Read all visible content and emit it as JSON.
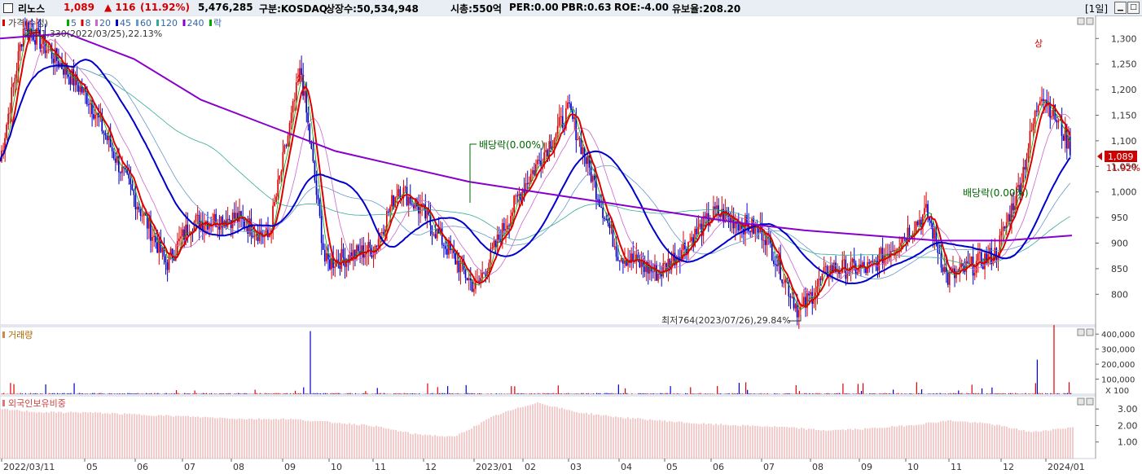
{
  "header": {
    "name": "리노스",
    "price": "1,089",
    "change": "▲ 116",
    "change_pct": "(11.92%)",
    "volume": "5,476,285",
    "market": "구분:KOSDAQ",
    "shares": "상장수:50,534,948",
    "mcap": "시총:550억",
    "per": "PER:0.00",
    "pbr": "PBR:0.63",
    "roe": "ROE:-4.00",
    "float": "유보율:208.20",
    "period": "[1일]",
    "colors": {
      "up": "#d40000",
      "down": "#0000cc"
    }
  },
  "price_panel": {
    "legend": {
      "title": "가격(수정)",
      "items": [
        {
          "label": "5",
          "color": "#00aa00"
        },
        {
          "label": "8",
          "color": "#dd0000"
        },
        {
          "label": "20",
          "color": "#cc66cc"
        },
        {
          "label": "45",
          "color": "#0000cc"
        },
        {
          "label": "60",
          "color": "#6699cc"
        },
        {
          "label": "120",
          "color": "#33aa99"
        },
        {
          "label": "240",
          "color": "#8800cc"
        },
        {
          "label": "락",
          "color": "#00aa00"
        }
      ]
    },
    "high_note": "최고1,330(2022/03/25),22.13%",
    "low_note": "최저764(2023/07/26),29.84%",
    "dividend1": "배당락(0.00%)",
    "dividend2": "배당락(0.00%)",
    "limit1": "상",
    "limit2": "상",
    "current_price": "1,089",
    "current_pct": "11.92%"
  },
  "volume_panel": {
    "title": "거래량",
    "ticks": [
      "400,000",
      "300,000",
      "200,000",
      "100,000"
    ],
    "unit": "X 100"
  },
  "foreign_panel": {
    "title": "외국인보유비중",
    "ticks": [
      "3.00",
      "2.00",
      "1.00"
    ]
  },
  "x_axis_labels": [
    "2022/03/11",
    "05",
    "06",
    "07",
    "08",
    "09",
    "10",
    "11",
    "12",
    "2023/01",
    "02",
    "03",
    "04",
    "05",
    "06",
    "07",
    "08",
    "09",
    "10",
    "11",
    "12",
    "2024/01"
  ],
  "chart_data": {
    "type": "line",
    "title": "리노스",
    "x_range": [
      "2022/03/11",
      "2024/01"
    ],
    "ylim": [
      764,
      1330
    ],
    "y_ticks": [
      800,
      850,
      900,
      950,
      1000,
      1050,
      1100,
      1150,
      1200,
      1250,
      1300
    ],
    "price_series": {
      "name": "가격(수정)",
      "points": [
        [
          "2022/03/11",
          1060
        ],
        [
          "2022/03/25",
          1330
        ],
        [
          "2022/04",
          1240
        ],
        [
          "2022/05",
          1180
        ],
        [
          "2022/06",
          1040
        ],
        [
          "2022/07",
          860
        ],
        [
          "2022/07",
          940
        ],
        [
          "2022/08",
          950
        ],
        [
          "2022/09",
          910
        ],
        [
          "2022/09",
          1240
        ],
        [
          "2022/10",
          860
        ],
        [
          "2022/11",
          890
        ],
        [
          "2022/12",
          1010
        ],
        [
          "2022/12",
          960
        ],
        [
          "2023/01",
          810
        ],
        [
          "2023/02",
          1000
        ],
        [
          "2023/03",
          1160
        ],
        [
          "2023/04",
          880
        ],
        [
          "2023/05",
          840
        ],
        [
          "2023/06",
          960
        ],
        [
          "2023/07",
          920
        ],
        [
          "2023/07/26",
          764
        ],
        [
          "2023/08",
          850
        ],
        [
          "2023/09",
          850
        ],
        [
          "2023/10",
          960
        ],
        [
          "2023/11",
          830
        ],
        [
          "2023/12",
          880
        ],
        [
          "2023/12",
          1020
        ],
        [
          "2024/01",
          1200
        ],
        [
          "2024/01",
          1089
        ]
      ]
    },
    "ma240": {
      "name": "240",
      "values": [
        1300,
        1310,
        1260,
        1180,
        1130,
        1080,
        1050,
        1020,
        1000,
        980,
        960,
        940,
        925,
        915,
        905,
        905,
        915
      ]
    },
    "ma45": {
      "name": "45",
      "values": [
        1080,
        1190,
        1050,
        920,
        940,
        960,
        940,
        960,
        940,
        1010,
        960,
        870,
        920,
        840,
        880,
        860,
        870,
        965
      ]
    },
    "volume": {
      "unit": "X 100",
      "ylim": [
        0,
        450000
      ],
      "spikes": [
        {
          "x": "2022/09",
          "value": 420000
        },
        {
          "x": "2023/09",
          "value": 80000
        },
        {
          "x": "2024/01",
          "value": 460000
        },
        {
          "x": "2024/01",
          "value": 230000
        }
      ]
    },
    "foreign_ratio": {
      "ylim": [
        0,
        3.5
      ],
      "values": [
        3.0,
        2.8,
        2.8,
        2.7,
        2.6,
        2.5,
        2.4,
        2.4,
        2.2,
        2.0,
        1.5,
        1.3,
        2.6,
        3.4,
        2.8,
        2.5,
        2.3,
        2.1,
        2.0,
        1.9,
        1.7,
        1.8,
        2.0,
        2.3,
        2.1,
        1.6,
        1.9
      ]
    }
  }
}
